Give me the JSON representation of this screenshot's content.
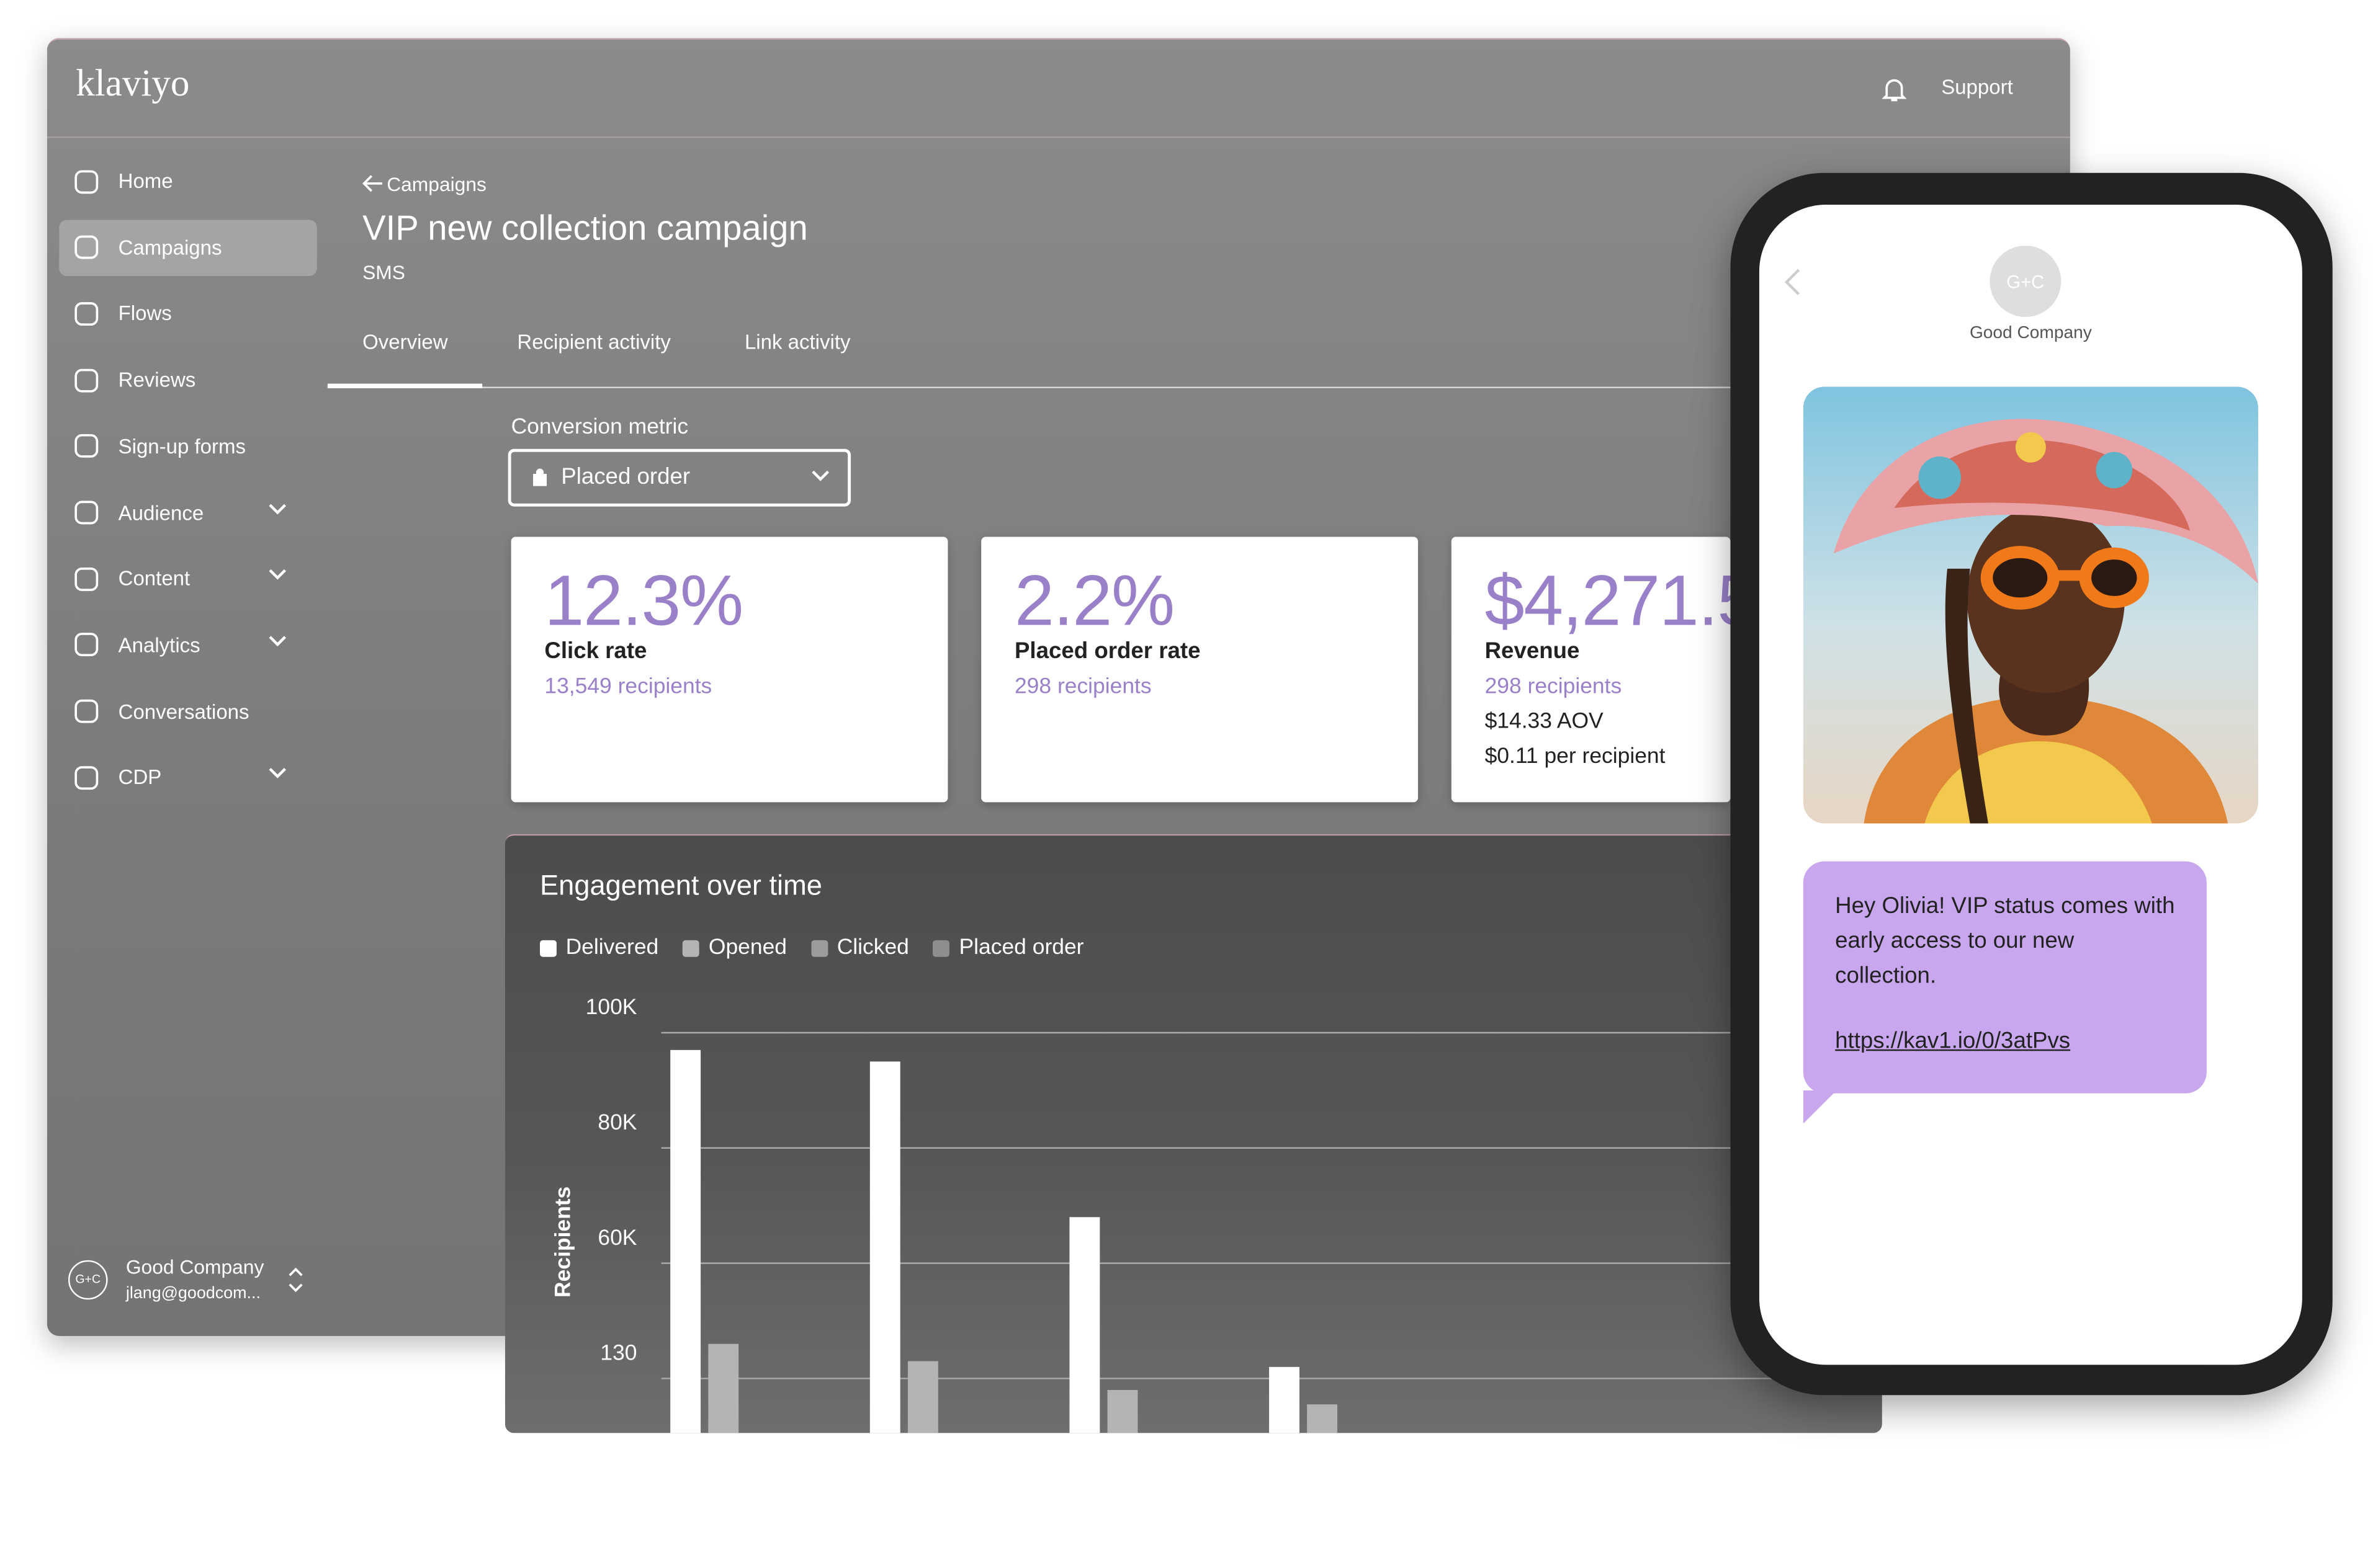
{
  "header": {
    "logo": "klaviyo",
    "support": "Support"
  },
  "sidebar": {
    "items": [
      {
        "label": "Home",
        "expandable": false
      },
      {
        "label": "Campaigns",
        "expandable": false,
        "active": true
      },
      {
        "label": "Flows",
        "expandable": false
      },
      {
        "label": "Reviews",
        "expandable": false
      },
      {
        "label": "Sign-up forms",
        "expandable": false
      },
      {
        "label": "Audience",
        "expandable": true
      },
      {
        "label": "Content",
        "expandable": true
      },
      {
        "label": "Analytics",
        "expandable": true
      },
      {
        "label": "Conversations",
        "expandable": false
      },
      {
        "label": "CDP",
        "expandable": true
      }
    ],
    "account": {
      "initials": "G+C",
      "name": "Good Company",
      "email": "jlang@goodcom..."
    }
  },
  "page": {
    "breadcrumb": "Campaigns",
    "title": "VIP new collection campaign",
    "channel": "SMS",
    "tabs": [
      "Overview",
      "Recipient activity",
      "Link activity"
    ],
    "conversion_label": "Conversion metric",
    "conversion_value": "Placed order"
  },
  "cards": [
    {
      "value": "12.3%",
      "label": "Click rate",
      "lines": [
        "13,549 recipients"
      ]
    },
    {
      "value": "2.2%",
      "label": "Placed order rate",
      "lines": [
        "298 recipients"
      ]
    },
    {
      "value": "$4,271.5",
      "label": "Revenue",
      "lines": [
        "298 recipients",
        "$14.33 AOV",
        "$0.11 per recipient"
      ]
    }
  ],
  "chart_data": {
    "type": "bar",
    "title": "Engagement over time",
    "y_label": "Recipients",
    "categories": [
      null,
      null,
      null,
      null
    ],
    "series": [
      {
        "name": "Delivered",
        "color": "#ffffff",
        "values": [
          97000,
          95000,
          68000,
          42000
        ]
      },
      {
        "name": "Opened",
        "color": "#b4b4b4",
        "values": [
          46000,
          43000,
          38000,
          35500
        ]
      },
      {
        "name": "Clicked",
        "color": "#9c9c9c",
        "values": [
          null,
          null,
          null,
          null
        ]
      },
      {
        "name": "Placed order",
        "color": "#8e8e8e",
        "values": [
          null,
          null,
          null,
          null
        ]
      }
    ],
    "ylim": [
      30000,
      105000
    ],
    "yticks": [
      {
        "value": 100000,
        "label": "100K"
      },
      {
        "value": 80000,
        "label": "80K"
      },
      {
        "value": 60000,
        "label": "60K"
      }
    ],
    "y_extra_label": "130",
    "grid": true
  },
  "phone": {
    "initials": "G+C",
    "sender": "Good Company",
    "message": "Hey Olivia! VIP status comes with early access to our new collection.",
    "link": "https://kav1.io/0/3atPvs"
  }
}
